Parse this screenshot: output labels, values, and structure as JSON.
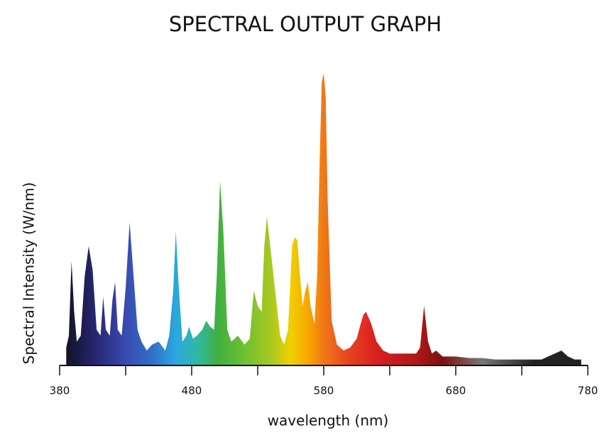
{
  "chart_data": {
    "type": "area",
    "title": "SPECTRAL OUTPUT GRAPH",
    "xlabel": "wavelength (nm)",
    "ylabel": "Spectral Intensity (W/nm)",
    "xlim": [
      380,
      780
    ],
    "ylim": [
      0,
      100
    ],
    "xticks": [
      380,
      480,
      580,
      680,
      780
    ],
    "xminorticks": [
      430,
      530,
      630,
      730
    ],
    "x": [
      385,
      387,
      389,
      391,
      393,
      396,
      399,
      402,
      405,
      408,
      411,
      413,
      415,
      418,
      420,
      422,
      424,
      427,
      430,
      433,
      436,
      439,
      442,
      446,
      450,
      455,
      460,
      463,
      466,
      468,
      470,
      473,
      476,
      478,
      481,
      484,
      488,
      491,
      494,
      497,
      499,
      501.5,
      504,
      507,
      510,
      515,
      520,
      524,
      527,
      530,
      533,
      535,
      537,
      539,
      542,
      544,
      547,
      550,
      553,
      556,
      558,
      560,
      562,
      564,
      566,
      568,
      570,
      573,
      575,
      577,
      578.5,
      580,
      581.5,
      583,
      586,
      590,
      595,
      600,
      605,
      608,
      610,
      612,
      614,
      616,
      620,
      625,
      630,
      640,
      650,
      653,
      656,
      659,
      662,
      665,
      670,
      680,
      690,
      700,
      710,
      720,
      730,
      740,
      745,
      750,
      755,
      760,
      765,
      770,
      775
    ],
    "values": [
      6,
      10,
      35,
      18,
      8,
      10,
      30,
      40,
      32,
      12,
      10,
      23,
      12,
      10,
      22,
      28,
      12,
      10,
      26,
      48,
      30,
      12,
      8,
      5,
      7,
      8,
      5,
      10,
      25,
      45,
      28,
      8,
      10,
      13,
      9,
      10,
      12,
      15,
      13,
      12,
      30,
      62,
      45,
      12,
      8,
      10,
      7,
      9,
      25,
      20,
      18,
      40,
      50,
      42,
      30,
      22,
      10,
      7,
      12,
      40,
      43,
      42,
      30,
      20,
      25,
      28,
      20,
      14,
      30,
      70,
      95,
      98,
      90,
      55,
      15,
      7,
      5,
      6,
      9,
      14,
      17,
      18,
      16,
      14,
      8,
      5,
      4,
      4,
      4,
      6,
      20,
      8,
      4,
      5,
      3,
      3,
      2.5,
      2.5,
      2,
      2,
      2,
      2,
      2,
      3,
      4,
      5,
      3,
      2,
      2
    ],
    "color_stops": [
      {
        "x": 380,
        "color": "#111111"
      },
      {
        "x": 395,
        "color": "#1a1a4a"
      },
      {
        "x": 410,
        "color": "#2a2a7a"
      },
      {
        "x": 430,
        "color": "#3a4ab0"
      },
      {
        "x": 450,
        "color": "#3070c8"
      },
      {
        "x": 468,
        "color": "#2aa8e0"
      },
      {
        "x": 485,
        "color": "#30b8a0"
      },
      {
        "x": 500,
        "color": "#40b040"
      },
      {
        "x": 520,
        "color": "#70c030"
      },
      {
        "x": 540,
        "color": "#a8c820"
      },
      {
        "x": 555,
        "color": "#f0d000"
      },
      {
        "x": 570,
        "color": "#f8a000"
      },
      {
        "x": 580,
        "color": "#f07818"
      },
      {
        "x": 600,
        "color": "#e84020"
      },
      {
        "x": 620,
        "color": "#d82020"
      },
      {
        "x": 650,
        "color": "#b01818"
      },
      {
        "x": 670,
        "color": "#801010"
      },
      {
        "x": 700,
        "color": "#777777"
      },
      {
        "x": 740,
        "color": "#222222"
      },
      {
        "x": 780,
        "color": "#222222"
      }
    ]
  }
}
